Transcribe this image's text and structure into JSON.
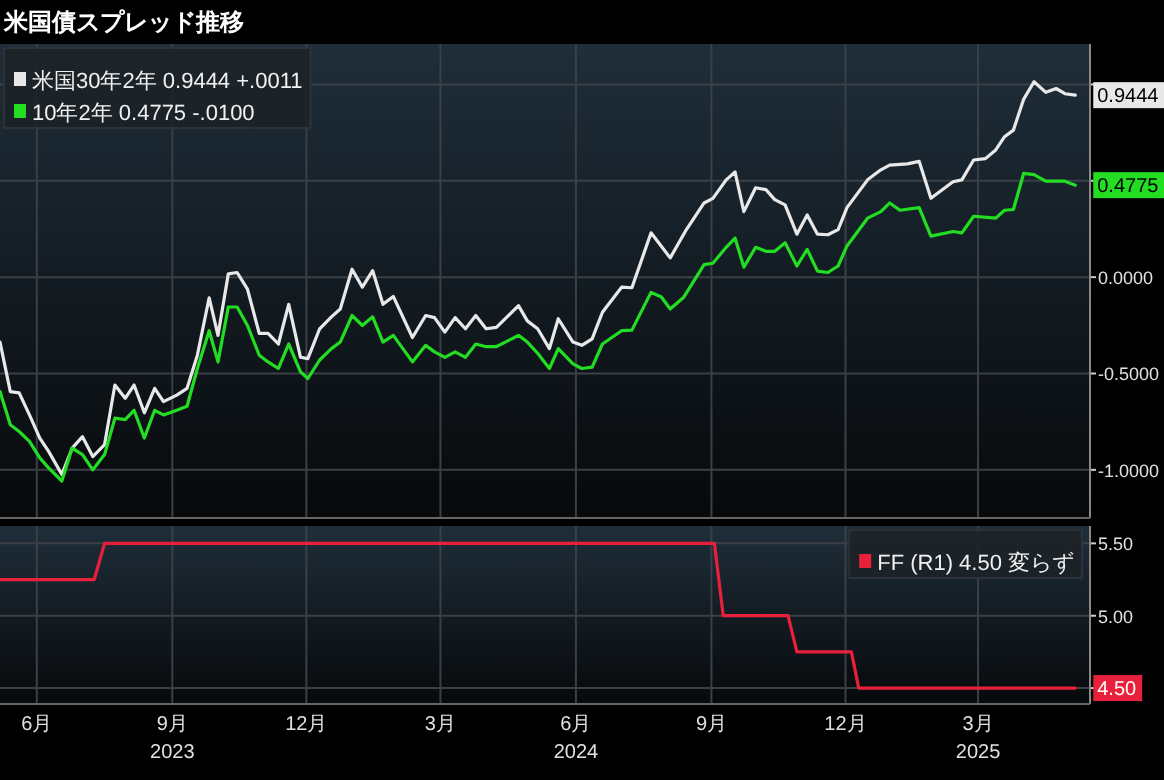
{
  "chart_data": [
    {
      "type": "line",
      "title": "米国債スプレッド推移",
      "xlim": [
        "2023-05-07",
        "2025-05-16"
      ],
      "xticks": [
        {
          "value": "2023-06-01",
          "label": null
        },
        {
          "value": "2023-09-01",
          "label": null
        },
        {
          "value": "2023-12-01",
          "label": null
        },
        {
          "value": "2024-03-01",
          "label": null
        },
        {
          "value": "2024-06-01",
          "label": null
        },
        {
          "value": "2024-09-01",
          "label": null
        },
        {
          "value": "2024-12-01",
          "label": null
        },
        {
          "value": "2025-03-01",
          "label": null
        }
      ],
      "ylim": [
        -1.25,
        1.21
      ],
      "yticks": [
        {
          "value": -1,
          "label": "-1.0000"
        },
        {
          "value": -0.5,
          "label": "-0.5000"
        },
        {
          "value": 0,
          "label": "0.0000"
        },
        {
          "value": 0.5,
          "label": null
        },
        {
          "value": 1,
          "label": null
        }
      ],
      "tick_labels": "y",
      "grid": true,
      "legend": "top left",
      "series": [
        {
          "name": "米国30年2年 0.9444 +.0011",
          "color": "#e8e8e8",
          "x": [
            "2023-05-07",
            "2023-05-14",
            "2023-05-20",
            "2023-05-27",
            "2023-06-03",
            "2023-06-09",
            "2023-06-18",
            "2023-06-25",
            "2023-07-02",
            "2023-07-09",
            "2023-07-17",
            "2023-07-24",
            "2023-07-31",
            "2023-08-06",
            "2023-08-13",
            "2023-08-20",
            "2023-08-26",
            "2023-09-04",
            "2023-09-11",
            "2023-09-18",
            "2023-09-26",
            "2023-10-02",
            "2023-10-09",
            "2023-10-15",
            "2023-10-22",
            "2023-10-30",
            "2023-11-05",
            "2023-11-12",
            "2023-11-19",
            "2023-11-27",
            "2023-12-02",
            "2023-12-10",
            "2023-12-18",
            "2023-12-24",
            "2024-01-01",
            "2024-01-08",
            "2024-01-15",
            "2024-01-22",
            "2024-01-29",
            "2024-02-11",
            "2024-02-20",
            "2024-02-26",
            "2024-03-04",
            "2024-03-11",
            "2024-03-18",
            "2024-03-25",
            "2024-04-01",
            "2024-04-08",
            "2024-04-23",
            "2024-04-29",
            "2024-05-06",
            "2024-05-14",
            "2024-05-20",
            "2024-05-30",
            "2024-06-05",
            "2024-06-12",
            "2024-06-19",
            "2024-07-02",
            "2024-07-09",
            "2024-07-22",
            "2024-08-04",
            "2024-08-15",
            "2024-08-27",
            "2024-09-02",
            "2024-09-11",
            "2024-09-17",
            "2024-09-23",
            "2024-10-01",
            "2024-10-08",
            "2024-10-14",
            "2024-10-21",
            "2024-10-29",
            "2024-11-05",
            "2024-11-12",
            "2024-11-19",
            "2024-11-26",
            "2024-12-02",
            "2024-12-16",
            "2024-12-25",
            "2024-12-31",
            "2025-01-12",
            "2025-01-20",
            "2025-01-28",
            "2025-02-12",
            "2025-02-18",
            "2025-02-26",
            "2025-03-06",
            "2025-03-13",
            "2025-03-19",
            "2025-03-25",
            "2025-04-01",
            "2025-04-08",
            "2025-04-16",
            "2025-04-23",
            "2025-04-29",
            "2025-05-06"
          ],
          "values": [
            -0.337,
            -0.594,
            -0.601,
            -0.715,
            -0.835,
            -0.904,
            -1.024,
            -0.887,
            -0.828,
            -0.931,
            -0.869,
            -0.56,
            -0.629,
            -0.56,
            -0.704,
            -0.577,
            -0.646,
            -0.612,
            -0.577,
            -0.405,
            -0.107,
            -0.302,
            0.017,
            0.024,
            -0.062,
            -0.292,
            -0.292,
            -0.347,
            -0.141,
            -0.416,
            -0.423,
            -0.268,
            -0.206,
            -0.165,
            0.041,
            -0.052,
            0.034,
            -0.141,
            -0.1,
            -0.313,
            -0.199,
            -0.21,
            -0.285,
            -0.21,
            -0.268,
            -0.199,
            -0.268,
            -0.261,
            -0.148,
            -0.227,
            -0.268,
            -0.371,
            -0.216,
            -0.337,
            -0.354,
            -0.32,
            -0.182,
            -0.052,
            -0.055,
            0.23,
            0.1,
            0.247,
            0.385,
            0.409,
            0.505,
            0.546,
            0.34,
            0.464,
            0.454,
            0.402,
            0.375,
            0.223,
            0.323,
            0.223,
            0.22,
            0.247,
            0.361,
            0.505,
            0.557,
            0.581,
            0.588,
            0.601,
            0.409,
            0.495,
            0.505,
            0.608,
            0.615,
            0.66,
            0.729,
            0.763,
            0.924,
            1.014,
            0.959,
            0.979,
            0.952,
            0.9444
          ]
        },
        {
          "name": "10年2年 0.4775 -.0100",
          "color": "#22dd22",
          "x": [
            "2023-05-07",
            "2023-05-14",
            "2023-05-20",
            "2023-05-27",
            "2023-06-03",
            "2023-06-09",
            "2023-06-18",
            "2023-06-25",
            "2023-07-02",
            "2023-07-09",
            "2023-07-17",
            "2023-07-24",
            "2023-07-31",
            "2023-08-06",
            "2023-08-13",
            "2023-08-20",
            "2023-08-26",
            "2023-09-04",
            "2023-09-11",
            "2023-09-18",
            "2023-09-26",
            "2023-10-02",
            "2023-10-09",
            "2023-10-15",
            "2023-10-22",
            "2023-10-30",
            "2023-11-05",
            "2023-11-12",
            "2023-11-19",
            "2023-11-27",
            "2023-12-02",
            "2023-12-10",
            "2023-12-18",
            "2023-12-24",
            "2024-01-01",
            "2024-01-08",
            "2024-01-15",
            "2024-01-22",
            "2024-01-29",
            "2024-02-11",
            "2024-02-20",
            "2024-02-26",
            "2024-03-04",
            "2024-03-11",
            "2024-03-18",
            "2024-03-25",
            "2024-04-01",
            "2024-04-08",
            "2024-04-23",
            "2024-04-29",
            "2024-05-06",
            "2024-05-14",
            "2024-05-20",
            "2024-05-30",
            "2024-06-05",
            "2024-06-12",
            "2024-06-19",
            "2024-07-02",
            "2024-07-09",
            "2024-07-22",
            "2024-07-29",
            "2024-08-04",
            "2024-08-13",
            "2024-08-27",
            "2024-09-02",
            "2024-09-11",
            "2024-09-17",
            "2024-09-23",
            "2024-10-01",
            "2024-10-08",
            "2024-10-14",
            "2024-10-21",
            "2024-10-29",
            "2024-11-05",
            "2024-11-12",
            "2024-11-19",
            "2024-11-26",
            "2024-12-02",
            "2024-12-16",
            "2024-12-25",
            "2024-12-31",
            "2025-01-07",
            "2025-01-20",
            "2025-01-28",
            "2025-02-12",
            "2025-02-18",
            "2025-02-26",
            "2025-03-13",
            "2025-03-19",
            "2025-03-25",
            "2025-04-01",
            "2025-04-08",
            "2025-04-16",
            "2025-04-29",
            "2025-05-06"
          ],
          "values": [
            -0.594,
            -0.766,
            -0.801,
            -0.852,
            -0.938,
            -0.99,
            -1.058,
            -0.887,
            -0.921,
            -1.0,
            -0.921,
            -0.732,
            -0.739,
            -0.691,
            -0.835,
            -0.691,
            -0.715,
            -0.691,
            -0.67,
            -0.474,
            -0.278,
            -0.44,
            -0.155,
            -0.155,
            -0.251,
            -0.405,
            -0.44,
            -0.474,
            -0.347,
            -0.491,
            -0.526,
            -0.43,
            -0.371,
            -0.337,
            -0.199,
            -0.251,
            -0.206,
            -0.337,
            -0.302,
            -0.44,
            -0.354,
            -0.388,
            -0.416,
            -0.388,
            -0.416,
            -0.347,
            -0.361,
            -0.361,
            -0.302,
            -0.337,
            -0.395,
            -0.474,
            -0.371,
            -0.45,
            -0.474,
            -0.467,
            -0.347,
            -0.278,
            -0.275,
            -0.079,
            -0.103,
            -0.165,
            -0.106,
            0.065,
            0.072,
            0.155,
            0.203,
            0.052,
            0.155,
            0.134,
            0.134,
            0.179,
            0.058,
            0.144,
            0.031,
            0.024,
            0.058,
            0.162,
            0.306,
            0.34,
            0.385,
            0.347,
            0.361,
            0.213,
            0.237,
            0.23,
            0.316,
            0.306,
            0.347,
            0.351,
            0.539,
            0.532,
            0.498,
            0.498,
            0.4775
          ]
        }
      ],
      "annotations": [
        {
          "text": "0.9444",
          "x": "2025-05-06",
          "y": 0.9444
        },
        {
          "text": "0.4775",
          "x": "2025-05-06",
          "y": 0.4775
        }
      ]
    },
    {
      "type": "line",
      "xlim": [
        "2023-05-07",
        "2025-05-16"
      ],
      "xticks": [
        {
          "value": "2023-06-01",
          "label": "6月"
        },
        {
          "value": "2023-09-01",
          "label": "9月\n2023"
        },
        {
          "value": "2023-12-01",
          "label": "12月"
        },
        {
          "value": "2024-03-01",
          "label": "3月"
        },
        {
          "value": "2024-06-01",
          "label": "6月\n2024"
        },
        {
          "value": "2024-09-01",
          "label": "9月"
        },
        {
          "value": "2024-12-01",
          "label": "12月"
        },
        {
          "value": "2025-03-01",
          "label": "3月\n2025"
        }
      ],
      "ylim": [
        4.39,
        5.62
      ],
      "yticks": [
        {
          "value": 4.5,
          "label": null
        },
        {
          "value": 5,
          "label": "5.00"
        },
        {
          "value": 5.5,
          "label": "5.50"
        }
      ],
      "grid": true,
      "legend": "top right",
      "series": [
        {
          "name": "FF (R1) 4.50 変らず",
          "color": "#e8203c",
          "x": [
            "2023-05-07",
            "2023-07-10",
            "2023-07-17",
            "2024-09-03",
            "2024-09-09",
            "2024-10-23",
            "2024-10-29",
            "2024-12-05",
            "2024-12-10",
            "2025-05-06"
          ],
          "values": [
            5.25,
            5.25,
            5.5,
            5.5,
            5.0,
            5.0,
            4.75,
            4.75,
            4.5,
            4.5
          ]
        }
      ],
      "annotations": [
        {
          "text": "4.50",
          "x": "2025-05-06",
          "y": 4.5
        }
      ]
    }
  ]
}
